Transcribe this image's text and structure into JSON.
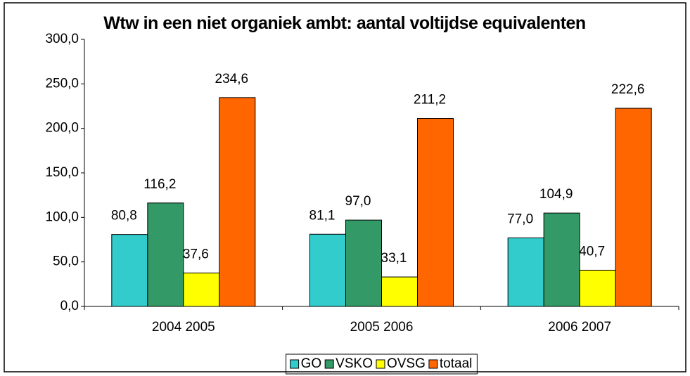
{
  "chart_data": {
    "type": "bar",
    "title": "Wtw in een niet organiek ambt:  aantal voltijdse equivalenten",
    "categories": [
      "2004 2005",
      "2005 2006",
      "2006 2007"
    ],
    "series": [
      {
        "name": "GO",
        "color": "#33cccc",
        "values": [
          80.8,
          81.1,
          77.0
        ],
        "value_labels": [
          "80,8",
          "81,1",
          "77,0"
        ]
      },
      {
        "name": "VSKO",
        "color": "#339966",
        "values": [
          116.2,
          97.0,
          104.9
        ],
        "value_labels": [
          "116,2",
          "97,0",
          "104,9"
        ]
      },
      {
        "name": "OVSG",
        "color": "#ffff00",
        "values": [
          37.6,
          33.1,
          40.7
        ],
        "value_labels": [
          "37,6",
          "33,1",
          "40,7"
        ]
      },
      {
        "name": "totaal",
        "color": "#ff6600",
        "values": [
          234.6,
          211.2,
          222.6
        ],
        "value_labels": [
          "234,6",
          "211,2",
          "222,6"
        ]
      }
    ],
    "ylim": [
      0,
      300
    ],
    "yticks": [
      {
        "value": 0,
        "label": "0,0"
      },
      {
        "value": 50,
        "label": "50,0"
      },
      {
        "value": 100,
        "label": "100,0"
      },
      {
        "value": 150,
        "label": "150,0"
      },
      {
        "value": 200,
        "label": "200,0"
      },
      {
        "value": 250,
        "label": "250,0"
      },
      {
        "value": 300,
        "label": "300,0"
      }
    ],
    "legend": "bottom"
  }
}
